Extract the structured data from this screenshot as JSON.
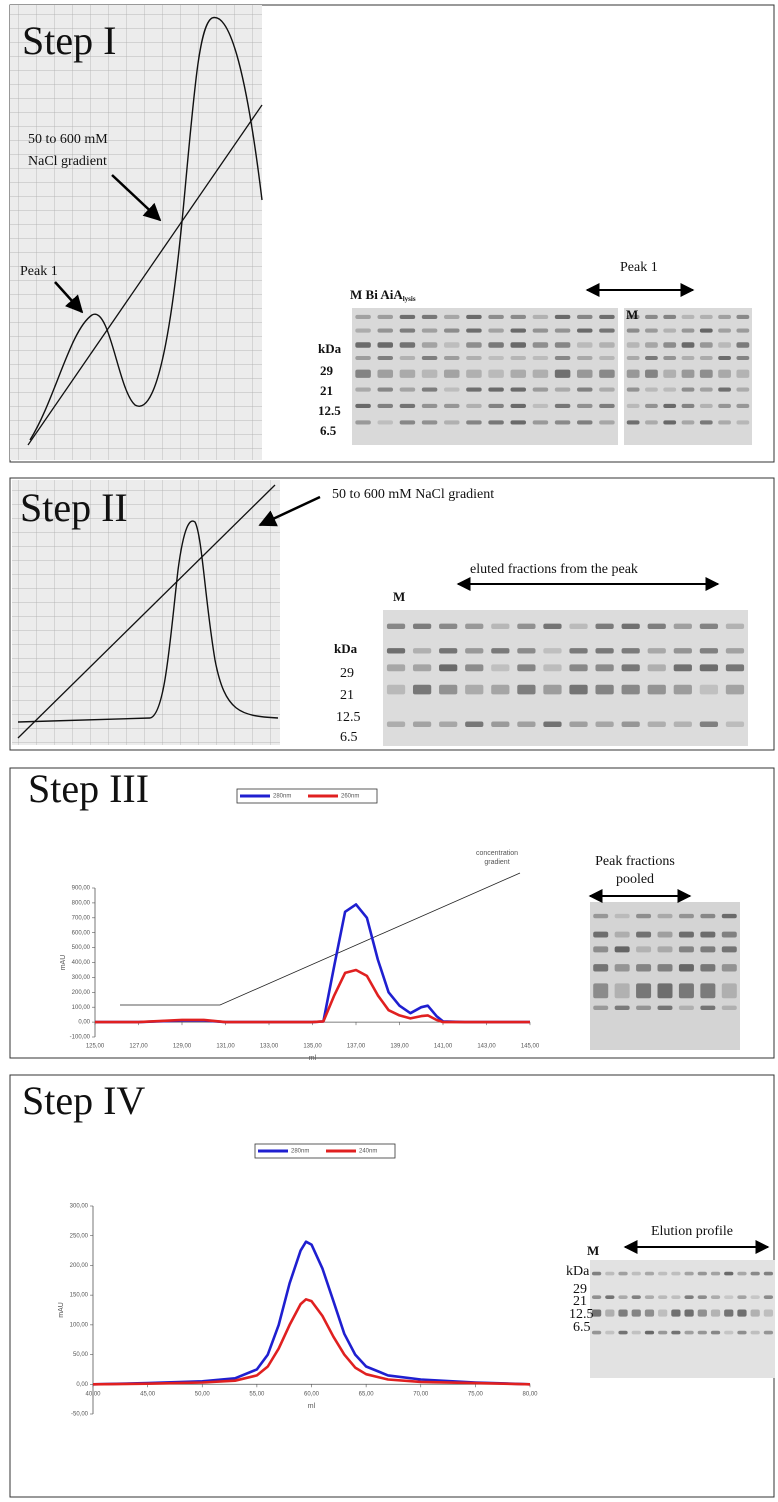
{
  "panels": [
    {
      "step": "Step I",
      "gradient_label": [
        "50 to 600 mM",
        "NaCl gradient"
      ],
      "peak_label": "Peak 1",
      "gel": {
        "lane_labels": "M Bi AiA",
        "lane_subscript": "lysis",
        "range_label": "Peak 1",
        "marker_label": "M",
        "unit": "kDa",
        "markers": [
          "29",
          "21",
          "12.5",
          "6.5"
        ]
      }
    },
    {
      "step": "Step II",
      "gradient_label": "50 to 600 mM NaCl gradient",
      "gel": {
        "marker_label": "M",
        "range_label": "eluted fractions from the peak",
        "unit": "kDa",
        "markers": [
          "29",
          "21",
          "12.5",
          "6.5"
        ]
      }
    },
    {
      "step": "Step III",
      "gradient_label": [
        "concentration",
        "gradient"
      ],
      "gel": {
        "range_label": [
          "Peak fractions",
          "pooled"
        ]
      }
    },
    {
      "step": "Step IV",
      "gel": {
        "marker_label": "M",
        "range_label": "Elution profile",
        "unit": "kDa",
        "markers": [
          "29",
          "21",
          "12.5",
          "6.5"
        ]
      }
    }
  ],
  "chart_data": [
    {
      "type": "line",
      "ylabel": "mAU",
      "xlabel": "ml",
      "x": [
        125,
        127,
        129,
        130,
        131,
        133,
        135,
        135.5,
        136,
        136.5,
        137,
        137.5,
        138,
        138.5,
        139,
        139.5,
        140,
        140.3,
        140.7,
        141,
        142,
        143,
        145
      ],
      "series": [
        {
          "name": "280nm",
          "color": "#1f1fd0",
          "values": [
            0,
            0,
            10,
            10,
            0,
            0,
            0,
            5,
            380,
            740,
            790,
            700,
            420,
            200,
            110,
            60,
            100,
            110,
            40,
            5,
            0,
            0,
            0
          ]
        },
        {
          "name": "260nm",
          "color": "#e02020",
          "values": [
            0,
            0,
            15,
            15,
            0,
            0,
            0,
            5,
            180,
            330,
            350,
            310,
            180,
            80,
            45,
            25,
            40,
            45,
            15,
            0,
            0,
            0,
            0
          ]
        }
      ],
      "xlim": [
        125,
        145
      ],
      "ylim": [
        -100,
        900
      ],
      "xticks": [
        {
          "value": 125,
          "label": "125,00"
        },
        {
          "value": 127,
          "label": "127,00"
        },
        {
          "value": 129,
          "label": "129,00"
        },
        {
          "value": 131,
          "label": "131,00"
        },
        {
          "value": 133,
          "label": "133,00"
        },
        {
          "value": 135,
          "label": "135,00"
        },
        {
          "value": 137,
          "label": "137,00"
        },
        {
          "value": 139,
          "label": "139,00"
        },
        {
          "value": 141,
          "label": "141,00"
        },
        {
          "value": 143,
          "label": "143,00"
        },
        {
          "value": 145,
          "label": "145,00"
        }
      ],
      "yticks": [
        {
          "value": -100,
          "label": "-100,00"
        },
        {
          "value": 0,
          "label": "0,00"
        },
        {
          "value": 100,
          "label": "100,00"
        },
        {
          "value": 200,
          "label": "200,00"
        },
        {
          "value": 300,
          "label": "300,00"
        },
        {
          "value": 400,
          "label": "400,00"
        },
        {
          "value": 500,
          "label": "500,00"
        },
        {
          "value": 600,
          "label": "600,00"
        },
        {
          "value": 700,
          "label": "700,00"
        },
        {
          "value": 800,
          "label": "800,00"
        },
        {
          "value": 900,
          "label": "900,00"
        }
      ]
    },
    {
      "type": "line",
      "ylabel": "mAU",
      "xlabel": "ml",
      "x": [
        40,
        45,
        50,
        53,
        55,
        56,
        57,
        58,
        59,
        59.5,
        60,
        61,
        62,
        63,
        64,
        65,
        67,
        70,
        75,
        80
      ],
      "series": [
        {
          "name": "280nm",
          "color": "#1f1fd0",
          "values": [
            0,
            2,
            5,
            10,
            25,
            50,
            100,
            170,
            225,
            240,
            235,
            195,
            140,
            85,
            50,
            30,
            15,
            8,
            3,
            0
          ]
        },
        {
          "name": "240nm",
          "color": "#e02020",
          "values": [
            0,
            1,
            3,
            6,
            15,
            30,
            60,
            100,
            135,
            143,
            140,
            115,
            80,
            50,
            28,
            17,
            8,
            4,
            2,
            0
          ]
        }
      ],
      "xlim": [
        40,
        80
      ],
      "ylim": [
        -50,
        300
      ],
      "xticks": [
        {
          "value": 40,
          "label": "40,00"
        },
        {
          "value": 45,
          "label": "45,00"
        },
        {
          "value": 50,
          "label": "50,00"
        },
        {
          "value": 55,
          "label": "55,00"
        },
        {
          "value": 60,
          "label": "60,00"
        },
        {
          "value": 65,
          "label": "65,00"
        },
        {
          "value": 70,
          "label": "70,00"
        },
        {
          "value": 75,
          "label": "75,00"
        },
        {
          "value": 80,
          "label": "80,00"
        }
      ],
      "yticks": [
        {
          "value": -50,
          "label": "-50,00"
        },
        {
          "value": 0,
          "label": "0,00"
        },
        {
          "value": 50,
          "label": "50,00"
        },
        {
          "value": 100,
          "label": "100,00"
        },
        {
          "value": 150,
          "label": "150,00"
        },
        {
          "value": 200,
          "label": "200,00"
        },
        {
          "value": 250,
          "label": "250,00"
        },
        {
          "value": 300,
          "label": "300,00"
        }
      ]
    }
  ]
}
